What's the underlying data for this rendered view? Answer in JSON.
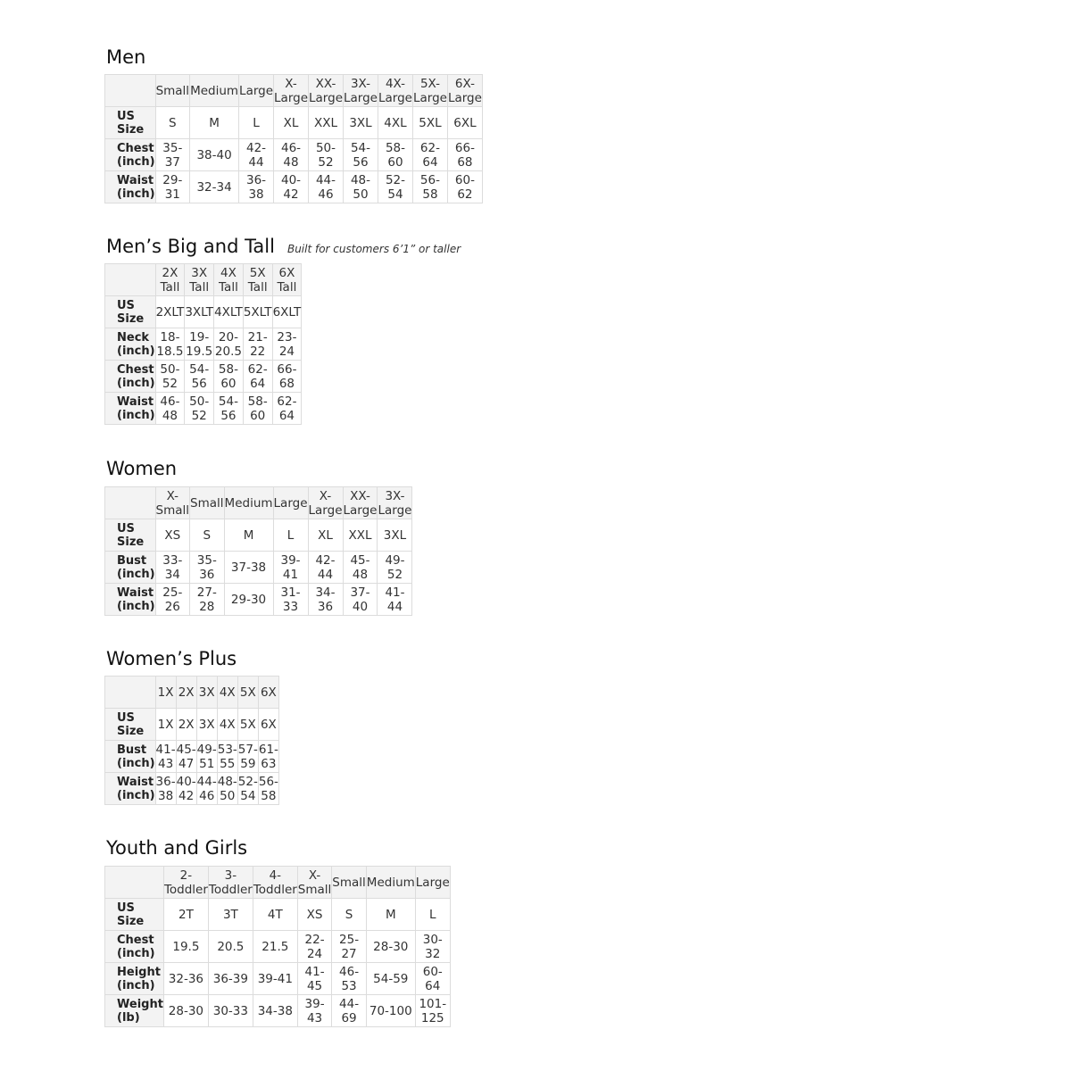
{
  "sections": [
    {
      "title": "Men",
      "note": "",
      "columns": [
        "Small",
        "Medium",
        "Large",
        "X-Large",
        "XX-Large",
        "3X-Large",
        "4X-Large",
        "5X-Large",
        "6X-Large"
      ],
      "rows": [
        {
          "label": "US Size",
          "values": [
            "S",
            "M",
            "L",
            "XL",
            "XXL",
            "3XL",
            "4XL",
            "5XL",
            "6XL"
          ]
        },
        {
          "label": "Chest (inch)",
          "values": [
            "35-37",
            "38-40",
            "42-44",
            "46-48",
            "50-52",
            "54-56",
            "58-60",
            "62-64",
            "66-68"
          ]
        },
        {
          "label": "Waist (inch)",
          "values": [
            "29-31",
            "32-34",
            "36-38",
            "40-42",
            "44-46",
            "48-50",
            "52-54",
            "56-58",
            "60-62"
          ]
        }
      ]
    },
    {
      "title": "Men’s Big and Tall",
      "note": "Built for customers 6’1” or taller",
      "columns": [
        "2X Tall",
        "3X Tall",
        "4X Tall",
        "5X Tall",
        "6X Tall"
      ],
      "rows": [
        {
          "label": "US Size",
          "values": [
            "2XLT",
            "3XLT",
            "4XLT",
            "5XLT",
            "6XLT"
          ]
        },
        {
          "label": "Neck (inch)",
          "values": [
            "18-18.5",
            "19-19.5",
            "20-20.5",
            "21-22",
            "23-24"
          ]
        },
        {
          "label": "Chest (inch)",
          "values": [
            "50-52",
            "54-56",
            "58-60",
            "62-64",
            "66-68"
          ]
        },
        {
          "label": "Waist (inch)",
          "values": [
            "46-48",
            "50-52",
            "54-56",
            "58-60",
            "62-64"
          ]
        }
      ]
    },
    {
      "title": "Women",
      "note": "",
      "columns": [
        "X-Small",
        "Small",
        "Medium",
        "Large",
        "X-Large",
        "XX-Large",
        "3X-Large"
      ],
      "rows": [
        {
          "label": "US Size",
          "values": [
            "XS",
            "S",
            "M",
            "L",
            "XL",
            "XXL",
            "3XL"
          ]
        },
        {
          "label": "Bust (inch)",
          "values": [
            "33-34",
            "35-36",
            "37-38",
            "39-41",
            "42-44",
            "45-48",
            "49-52"
          ]
        },
        {
          "label": "Waist (inch)",
          "values": [
            "25-26",
            "27-28",
            "29-30",
            "31-33",
            "34-36",
            "37-40",
            "41-44"
          ]
        }
      ]
    },
    {
      "title": "Women’s  Plus",
      "note": "",
      "columns": [
        "1X",
        "2X",
        "3X",
        "4X",
        "5X",
        "6X"
      ],
      "rows": [
        {
          "label": "US Size",
          "values": [
            "1X",
            "2X",
            "3X",
            "4X",
            "5X",
            "6X"
          ]
        },
        {
          "label": "Bust (inch)",
          "values": [
            "41-43",
            "45-47",
            "49-51",
            "53-55",
            "57-59",
            "61-63"
          ]
        },
        {
          "label": "Waist (inch)",
          "values": [
            "36-38",
            "40-42",
            "44-46",
            "48-50",
            "52-54",
            "56-58"
          ]
        }
      ]
    },
    {
      "title": "Youth and Girls",
      "note": "",
      "columns": [
        "2-Toddler",
        "3-Toddler",
        "4-Toddler",
        "X-Small",
        "Small",
        "Medium",
        "Large"
      ],
      "rows": [
        {
          "label": "US Size",
          "values": [
            "2T",
            "3T",
            "4T",
            "XS",
            "S",
            "M",
            "L"
          ]
        },
        {
          "label": "Chest (inch)",
          "values": [
            "19.5",
            "20.5",
            "21.5",
            "22-24",
            "25-27",
            "28-30",
            "30-32"
          ]
        },
        {
          "label": "Height (inch)",
          "values": [
            "32-36",
            "36-39",
            "39-41",
            "41-45",
            "46-53",
            "54-59",
            "60-64"
          ]
        },
        {
          "label": "Weight (lb)",
          "values": [
            "28-30",
            "30-33",
            "34-38",
            "39-43",
            "44-69",
            "70-100",
            "101-125"
          ]
        }
      ]
    }
  ]
}
